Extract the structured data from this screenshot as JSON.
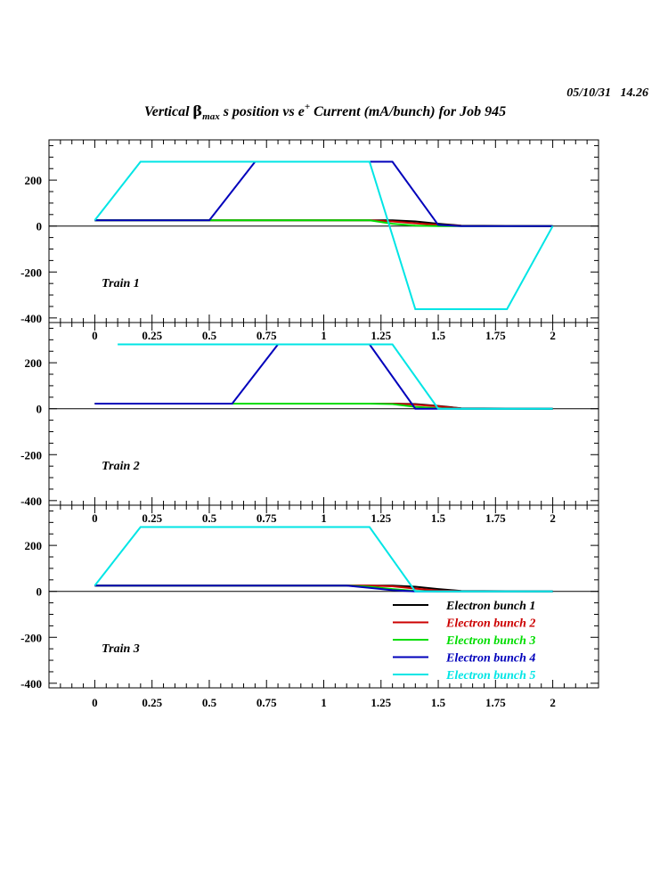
{
  "header": {
    "timestamp": "05/10/31   14.26",
    "title_pre": "Vertical ",
    "title_beta": "β",
    "title_sub": "max",
    "title_mid": " s position vs e",
    "title_sup": "+",
    "title_post": " Current (mA/bunch) for Job 945"
  },
  "colors": {
    "Electron bunch 1": "#000000",
    "Electron bunch 2": "#cc0000",
    "Electron bunch 3": "#00dd00",
    "Electron bunch 4": "#0000bb",
    "Electron bunch 5": "#00e5e5"
  },
  "chart_data": [
    {
      "type": "line",
      "panel_label": "Train 1",
      "xlim": [
        -0.2,
        2.2
      ],
      "ylim": [
        -420,
        375
      ],
      "x_ticks": [
        "0",
        "0.25",
        "0.5",
        "0.75",
        "1",
        "1.25",
        "1.5",
        "1.75",
        "2"
      ],
      "x_tick_values": [
        0,
        0.25,
        0.5,
        0.75,
        1,
        1.25,
        1.5,
        1.75,
        2
      ],
      "y_ticks": [
        "200",
        "0",
        "-200",
        "-400"
      ],
      "y_tick_values": [
        200,
        0,
        -200,
        -400
      ],
      "series": [
        {
          "name": "Electron bunch 1",
          "points": [
            [
              0,
              25
            ],
            [
              1.2,
              25
            ],
            [
              1.3,
              25
            ],
            [
              1.4,
              20
            ],
            [
              1.5,
              10
            ],
            [
              1.6,
              2
            ],
            [
              2,
              0
            ]
          ]
        },
        {
          "name": "Electron bunch 2",
          "points": [
            [
              0,
              25
            ],
            [
              1.2,
              25
            ],
            [
              1.3,
              20
            ],
            [
              1.4,
              12
            ],
            [
              1.5,
              5
            ],
            [
              1.6,
              1
            ],
            [
              2,
              0
            ]
          ]
        },
        {
          "name": "Electron bunch 3",
          "points": [
            [
              0,
              25
            ],
            [
              1.2,
              25
            ],
            [
              1.3,
              10
            ],
            [
              1.4,
              2
            ],
            [
              1.5,
              0
            ],
            [
              2,
              0
            ]
          ]
        },
        {
          "name": "Electron bunch 4",
          "points": [
            [
              0,
              25
            ],
            [
              0.5,
              25
            ],
            [
              0.7,
              280
            ],
            [
              1.3,
              280
            ],
            [
              1.5,
              5
            ],
            [
              1.6,
              0
            ],
            [
              2,
              0
            ]
          ]
        },
        {
          "name": "Electron bunch 5",
          "points": [
            [
              0,
              25
            ],
            [
              0.2,
              280
            ],
            [
              1.2,
              280
            ],
            [
              1.4,
              -362
            ],
            [
              1.8,
              -362
            ],
            [
              2,
              0
            ]
          ]
        }
      ]
    },
    {
      "type": "line",
      "panel_label": "Train 2",
      "xlim": [
        -0.2,
        2.2
      ],
      "ylim": [
        -420,
        375
      ],
      "x_ticks": [
        "0",
        "0.25",
        "0.5",
        "0.75",
        "1",
        "1.25",
        "1.5",
        "1.75",
        "2"
      ],
      "x_tick_values": [
        0,
        0.25,
        0.5,
        0.75,
        1,
        1.25,
        1.5,
        1.75,
        2
      ],
      "y_ticks": [
        "200",
        "0",
        "-200",
        "-400"
      ],
      "y_tick_values": [
        200,
        0,
        -200,
        -400
      ],
      "series": [
        {
          "name": "Electron bunch 1",
          "points": [
            [
              0,
              22
            ],
            [
              1.2,
              22
            ],
            [
              1.3,
              22
            ],
            [
              1.4,
              20
            ],
            [
              1.5,
              12
            ],
            [
              1.6,
              2
            ],
            [
              2,
              0
            ]
          ]
        },
        {
          "name": "Electron bunch 2",
          "points": [
            [
              0,
              22
            ],
            [
              1.2,
              22
            ],
            [
              1.3,
              22
            ],
            [
              1.4,
              18
            ],
            [
              1.5,
              10
            ],
            [
              1.6,
              1
            ],
            [
              2,
              0
            ]
          ]
        },
        {
          "name": "Electron bunch 3",
          "points": [
            [
              0,
              22
            ],
            [
              1.2,
              22
            ],
            [
              1.3,
              20
            ],
            [
              1.4,
              8
            ],
            [
              1.5,
              2
            ],
            [
              1.6,
              0
            ],
            [
              2,
              0
            ]
          ]
        },
        {
          "name": "Electron bunch 4",
          "points": [
            [
              0,
              22
            ],
            [
              0.6,
              22
            ],
            [
              0.8,
              280
            ],
            [
              1.2,
              280
            ],
            [
              1.4,
              0
            ],
            [
              2,
              0
            ]
          ]
        },
        {
          "name": "Electron bunch 5",
          "points": [
            [
              0.1,
              280
            ],
            [
              1.3,
              280
            ],
            [
              1.5,
              0
            ],
            [
              2,
              0
            ]
          ]
        }
      ]
    },
    {
      "type": "line",
      "panel_label": "Train 3",
      "xlim": [
        -0.2,
        2.2
      ],
      "ylim": [
        -420,
        375
      ],
      "x_ticks": [
        "0",
        "0.25",
        "0.5",
        "0.75",
        "1",
        "1.25",
        "1.5",
        "1.75",
        "2"
      ],
      "x_tick_values": [
        0,
        0.25,
        0.5,
        0.75,
        1,
        1.25,
        1.5,
        1.75,
        2
      ],
      "y_ticks": [
        "200",
        "0",
        "-200",
        "-400"
      ],
      "y_tick_values": [
        200,
        0,
        -200,
        -400
      ],
      "series": [
        {
          "name": "Electron bunch 1",
          "points": [
            [
              0,
              25
            ],
            [
              1.2,
              25
            ],
            [
              1.3,
              25
            ],
            [
              1.4,
              20
            ],
            [
              1.5,
              10
            ],
            [
              1.6,
              2
            ],
            [
              2,
              0
            ]
          ]
        },
        {
          "name": "Electron bunch 2",
          "points": [
            [
              0,
              25
            ],
            [
              1.2,
              25
            ],
            [
              1.3,
              22
            ],
            [
              1.4,
              12
            ],
            [
              1.5,
              4
            ],
            [
              1.6,
              1
            ],
            [
              2,
              0
            ]
          ]
        },
        {
          "name": "Electron bunch 3",
          "points": [
            [
              0,
              25
            ],
            [
              1.1,
              25
            ],
            [
              1.2,
              20
            ],
            [
              1.3,
              10
            ],
            [
              1.4,
              2
            ],
            [
              1.5,
              0
            ],
            [
              2,
              0
            ]
          ]
        },
        {
          "name": "Electron bunch 4",
          "points": [
            [
              0,
              25
            ],
            [
              1.1,
              25
            ],
            [
              1.2,
              15
            ],
            [
              1.3,
              5
            ],
            [
              1.4,
              0
            ],
            [
              2,
              0
            ]
          ]
        },
        {
          "name": "Electron bunch 5",
          "points": [
            [
              0,
              25
            ],
            [
              0.2,
              280
            ],
            [
              1.2,
              280
            ],
            [
              1.4,
              0
            ],
            [
              2,
              0
            ]
          ]
        }
      ]
    }
  ],
  "legend": {
    "placement": "bottom-right of Train 3 panel",
    "entries": [
      "Electron bunch 1",
      "Electron bunch 2",
      "Electron bunch 3",
      "Electron bunch 4",
      "Electron bunch 5"
    ]
  }
}
